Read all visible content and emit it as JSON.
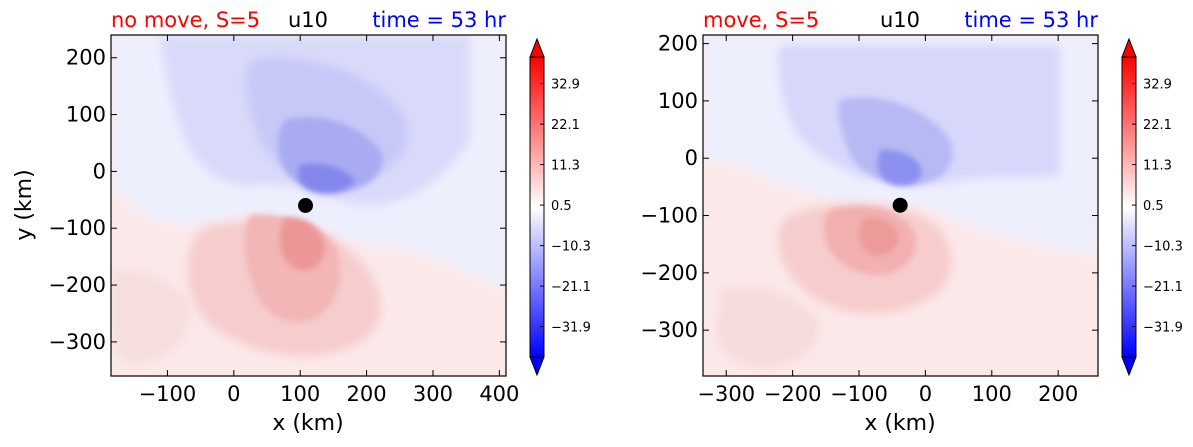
{
  "chart_data": [
    {
      "type": "heatmap",
      "title_left": "no move, S=5",
      "title_center": "u10",
      "title_right": "time = 53 hr",
      "xlabel": "x (km)",
      "ylabel": "y (km)",
      "xlim": [
        -185,
        410
      ],
      "ylim": [
        -360,
        240
      ],
      "xticks": [
        -100,
        0,
        100,
        200,
        300,
        400
      ],
      "yticks": [
        200,
        100,
        0,
        -100,
        -200,
        -300
      ],
      "xtick_labels": [
        "−100",
        "0",
        "100",
        "200",
        "300",
        "400"
      ],
      "ytick_labels": [
        "200",
        "100",
        "0",
        "−100",
        "−200",
        "−300"
      ],
      "center_marker": {
        "x": 108,
        "y": -60
      },
      "colorbar": {
        "range": [
          -40,
          40
        ],
        "extend": "both",
        "ticks": [
          32.9,
          22.1,
          11.3,
          0.5,
          -10.3,
          -21.1,
          -31.9
        ],
        "tick_labels": [
          "32.9",
          "22.1",
          "11.3",
          "0.5",
          "−10.3",
          "−21.1",
          "−31.9"
        ]
      }
    },
    {
      "type": "heatmap",
      "title_left": "move, S=5",
      "title_center": "u10",
      "title_right": "time = 53 hr",
      "xlabel": "x (km)",
      "ylabel": "",
      "xlim": [
        -335,
        260
      ],
      "ylim": [
        -380,
        215
      ],
      "xticks": [
        -300,
        -200,
        -100,
        0,
        100,
        200
      ],
      "yticks": [
        200,
        100,
        0,
        -100,
        -200,
        -300
      ],
      "xtick_labels": [
        "−300",
        "−200",
        "−100",
        "0",
        "100",
        "200"
      ],
      "ytick_labels": [
        "200",
        "100",
        "0",
        "−100",
        "−200",
        "−300"
      ],
      "center_marker": {
        "x": -38,
        "y": -82
      },
      "colorbar": {
        "range": [
          -40,
          40
        ],
        "extend": "both",
        "ticks": [
          32.9,
          22.1,
          11.3,
          0.5,
          -10.3,
          -21.1,
          -31.9
        ],
        "tick_labels": [
          "32.9",
          "22.1",
          "11.3",
          "0.5",
          "−10.3",
          "−21.1",
          "−31.9"
        ]
      }
    }
  ],
  "colors": {
    "title_left": "#ff0000",
    "title_center": "#000000",
    "title_right": "#0000ff",
    "marker": "#000000"
  }
}
